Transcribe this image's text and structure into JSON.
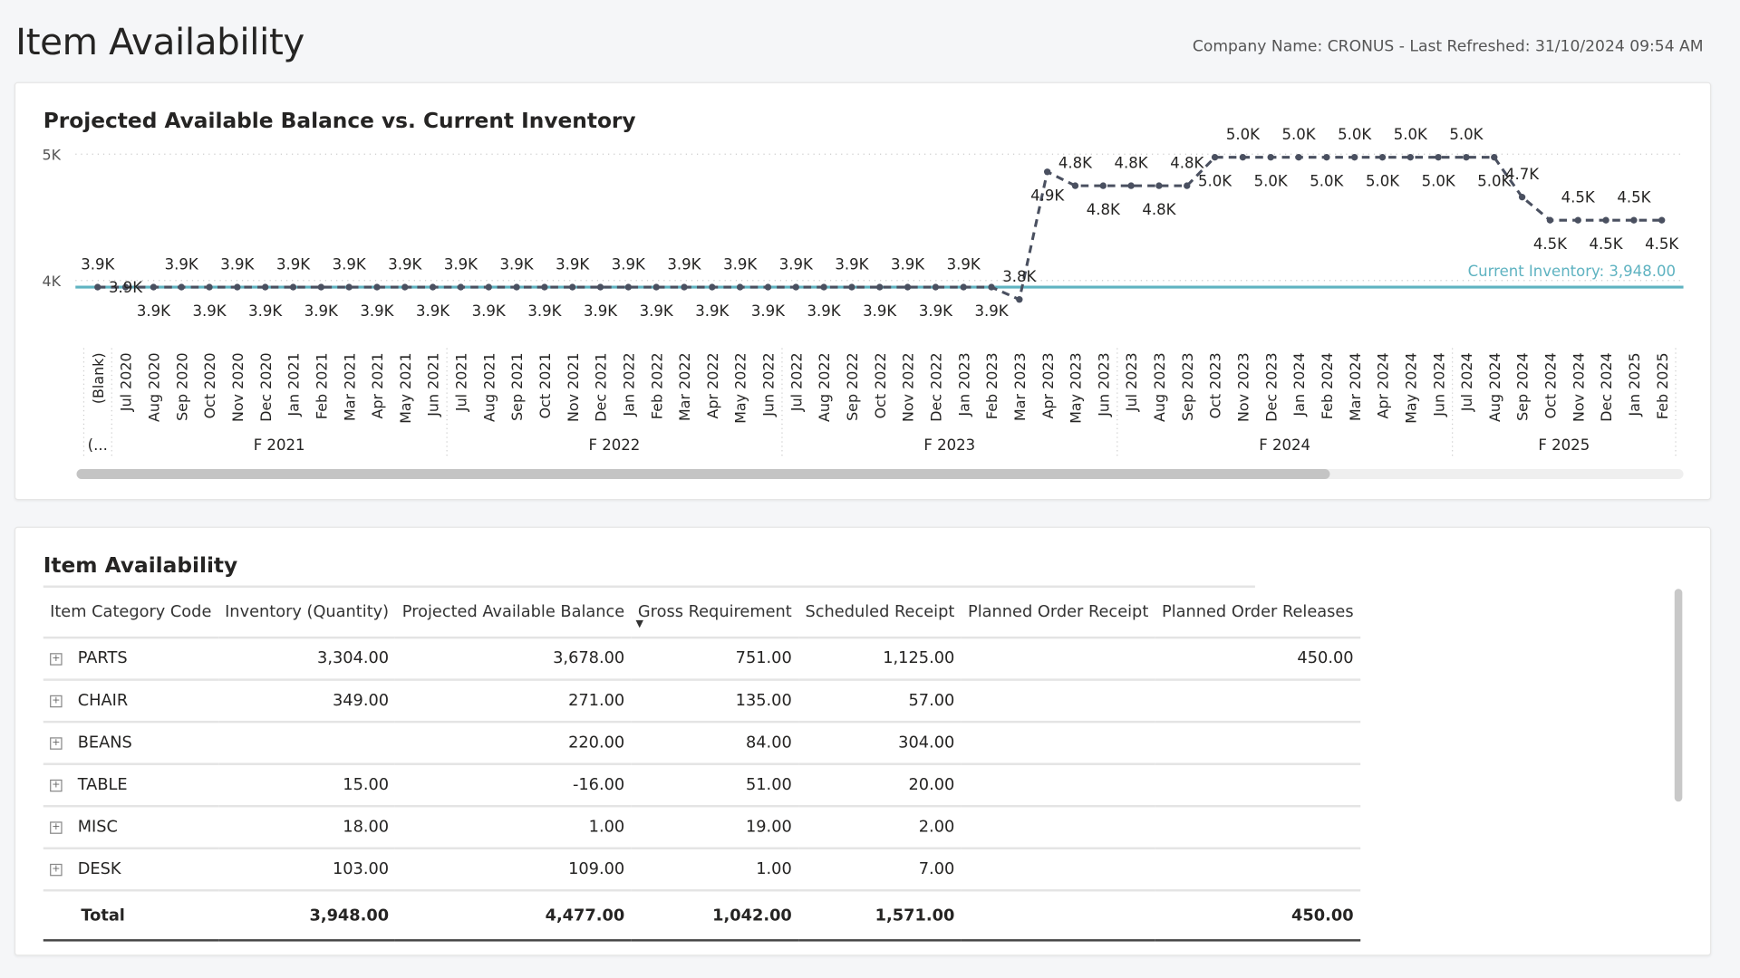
{
  "page": {
    "title": "Item Availability",
    "company_info": "Company Name: CRONUS - Last Refreshed: 31/10/2024 09:54 AM"
  },
  "chart_data": {
    "type": "line",
    "title": "Projected Available Balance vs. Current Inventory",
    "y_ticks": [
      "5K",
      "4K"
    ],
    "ylim": [
      3948,
      5000
    ],
    "grid": true,
    "colors": {
      "series": "#4a5060",
      "reference": "#5fb3c1"
    },
    "reference_line": {
      "label": "Current Inventory: 3,948.00",
      "value": 3948
    },
    "categories": [
      "(Blank)",
      "Jul 2020",
      "Aug 2020",
      "Sep 2020",
      "Oct 2020",
      "Nov 2020",
      "Dec 2020",
      "Jan 2021",
      "Feb 2021",
      "Mar 2021",
      "Apr 2021",
      "May 2021",
      "Jun 2021",
      "Jul 2021",
      "Aug 2021",
      "Sep 2021",
      "Oct 2021",
      "Nov 2021",
      "Dec 2021",
      "Jan 2022",
      "Feb 2022",
      "Mar 2022",
      "Apr 2022",
      "May 2022",
      "Jun 2022",
      "Jul 2022",
      "Aug 2022",
      "Sep 2022",
      "Oct 2022",
      "Nov 2022",
      "Dec 2022",
      "Jan 2023",
      "Feb 2023",
      "Mar 2023",
      "Apr 2023",
      "May 2023",
      "Jun 2023",
      "Jul 2023",
      "Aug 2023",
      "Sep 2023",
      "Oct 2023",
      "Nov 2023",
      "Dec 2023",
      "Jan 2024",
      "Feb 2024",
      "Mar 2024",
      "Apr 2024",
      "May 2024",
      "Jun 2024",
      "Jul 2024",
      "Aug 2024",
      "Sep 2024",
      "Oct 2024",
      "Nov 2024",
      "Dec 2024",
      "Jan 2025",
      "Feb 2025"
    ],
    "fiscal_groups": [
      {
        "label": "(...",
        "start": 0,
        "end": 0
      },
      {
        "label": "F 2021",
        "start": 1,
        "end": 12
      },
      {
        "label": "F 2022",
        "start": 13,
        "end": 24
      },
      {
        "label": "F 2023",
        "start": 25,
        "end": 36
      },
      {
        "label": "F 2024",
        "start": 37,
        "end": 48
      },
      {
        "label": "F 2025",
        "start": 49,
        "end": 56
      }
    ],
    "series": [
      {
        "values": [
          3948,
          3948,
          3948,
          3948,
          3948,
          3948,
          3948,
          3948,
          3948,
          3948,
          3948,
          3948,
          3948,
          3948,
          3948,
          3948,
          3948,
          3948,
          3948,
          3948,
          3948,
          3948,
          3948,
          3948,
          3948,
          3948,
          3948,
          3948,
          3948,
          3948,
          3948,
          3948,
          3948,
          3850,
          4860,
          4750,
          4750,
          4750,
          4750,
          4750,
          4975,
          4975,
          4975,
          4975,
          4975,
          4975,
          4975,
          4975,
          4975,
          4975,
          4975,
          4660,
          4477,
          4477,
          4477,
          4477,
          4477
        ],
        "labels": [
          "3.9K",
          "3.9K",
          "3.9K",
          "3.9K",
          "3.9K",
          "3.9K",
          "3.9K",
          "3.9K",
          "3.9K",
          "3.9K",
          "3.9K",
          "3.9K",
          "3.9K",
          "3.9K",
          "3.9K",
          "3.9K",
          "3.9K",
          "3.9K",
          "3.9K",
          "3.9K",
          "3.9K",
          "3.9K",
          "3.9K",
          "3.9K",
          "3.9K",
          "3.9K",
          "3.9K",
          "3.9K",
          "3.9K",
          "3.9K",
          "3.9K",
          "3.9K",
          "3.9K",
          "3.8K",
          "4.9K",
          "4.8K",
          "4.8K",
          "4.8K",
          "4.8K",
          "4.8K",
          "5.0K",
          "5.0K",
          "5.0K",
          "5.0K",
          "5.0K",
          "5.0K",
          "5.0K",
          "5.0K",
          "5.0K",
          "5.0K",
          "5.0K",
          "4.7K",
          "4.5K",
          "4.5K",
          "4.5K",
          "4.5K",
          "4.5K"
        ]
      }
    ],
    "scrollbar_fraction_visible": 0.78
  },
  "table": {
    "title": "Item Availability",
    "columns": [
      "Item Category Code",
      "Inventory (Quantity)",
      "Projected Available Balance",
      "Gross Requirement",
      "Scheduled Receipt",
      "Planned Order Receipt",
      "Planned Order Releases"
    ],
    "sorted_column": "Gross Requirement",
    "rows": [
      {
        "code": "PARTS",
        "inventory": "3,304.00",
        "pab": "3,678.00",
        "gross": "751.00",
        "scheduled": "1,125.00",
        "por": "",
        "releases": "450.00"
      },
      {
        "code": "CHAIR",
        "inventory": "349.00",
        "pab": "271.00",
        "gross": "135.00",
        "scheduled": "57.00",
        "por": "",
        "releases": ""
      },
      {
        "code": "BEANS",
        "inventory": "",
        "pab": "220.00",
        "gross": "84.00",
        "scheduled": "304.00",
        "por": "",
        "releases": ""
      },
      {
        "code": "TABLE",
        "inventory": "15.00",
        "pab": "-16.00",
        "gross": "51.00",
        "scheduled": "20.00",
        "por": "",
        "releases": ""
      },
      {
        "code": "MISC",
        "inventory": "18.00",
        "pab": "1.00",
        "gross": "19.00",
        "scheduled": "2.00",
        "por": "",
        "releases": ""
      },
      {
        "code": "DESK",
        "inventory": "103.00",
        "pab": "109.00",
        "gross": "1.00",
        "scheduled": "7.00",
        "por": "",
        "releases": ""
      }
    ],
    "total": {
      "label": "Total",
      "inventory": "3,948.00",
      "pab": "4,477.00",
      "gross": "1,042.00",
      "scheduled": "1,571.00",
      "por": "",
      "releases": "450.00"
    }
  }
}
